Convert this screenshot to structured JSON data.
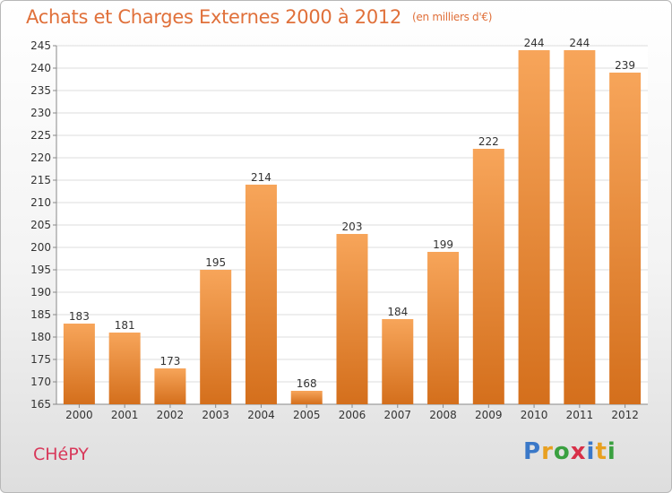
{
  "title": "Achats et Charges Externes 2000 à 2012",
  "subtitle": "(en milliers d'€)",
  "commune": "CHéPY",
  "logo": {
    "text": "Proxiti",
    "letter_colors": [
      "#3a78c8",
      "#e8a020",
      "#3aa040",
      "#d83048",
      "#3a78c8",
      "#e8a020",
      "#3aa040"
    ]
  },
  "chart_data": {
    "type": "bar",
    "categories": [
      "2000",
      "2001",
      "2002",
      "2003",
      "2004",
      "2005",
      "2006",
      "2007",
      "2008",
      "2009",
      "2010",
      "2011",
      "2012"
    ],
    "values": [
      183,
      181,
      173,
      195,
      214,
      168,
      203,
      184,
      199,
      222,
      244,
      244,
      239
    ],
    "ylim": [
      165,
      245
    ],
    "yticks": [
      165,
      170,
      175,
      180,
      185,
      190,
      195,
      200,
      205,
      210,
      215,
      220,
      225,
      230,
      235,
      240,
      245
    ],
    "grid": true,
    "bar_color_top": "#f7a55a",
    "bar_color_bottom": "#d46f1c"
  }
}
